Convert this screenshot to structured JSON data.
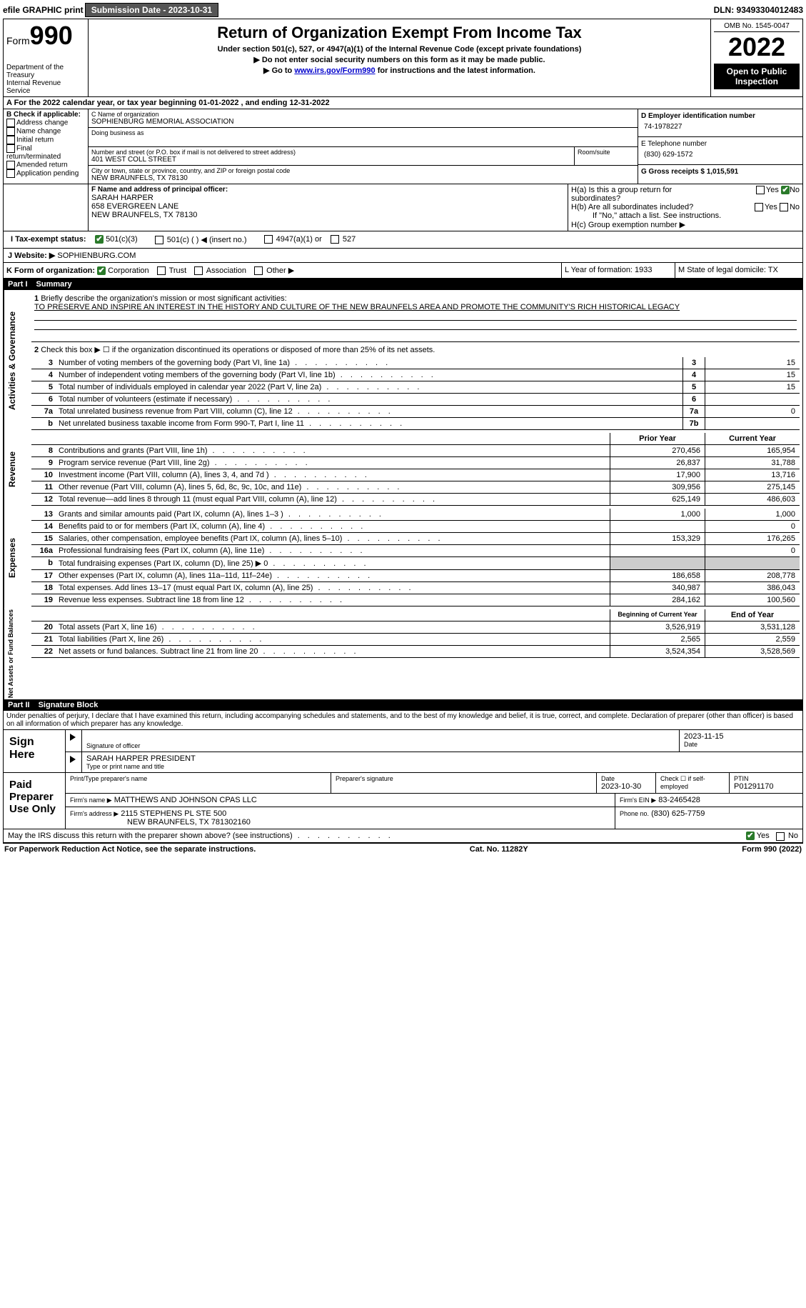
{
  "topbar": {
    "efile": "efile GRAPHIC print",
    "submission_label": "Submission Date - 2023-10-31",
    "dln_label": "DLN: 93493304012483"
  },
  "header": {
    "form_label": "Form",
    "form_number": "990",
    "title": "Return of Organization Exempt From Income Tax",
    "subtitle": "Under section 501(c), 527, or 4947(a)(1) of the Internal Revenue Code (except private foundations)",
    "note1": "▶ Do not enter social security numbers on this form as it may be made public.",
    "note2_pre": "▶ Go to ",
    "note2_link": "www.irs.gov/Form990",
    "note2_post": " for instructions and the latest information.",
    "dept": "Department of the Treasury",
    "irs": "Internal Revenue Service",
    "omb": "OMB No. 1545-0047",
    "year": "2022",
    "open": "Open to Public Inspection"
  },
  "section_a": "A For the 2022 calendar year, or tax year beginning 01-01-2022   , and ending 12-31-2022",
  "section_b": {
    "label_b": "B Check if applicable:",
    "opts": [
      "Address change",
      "Name change",
      "Initial return",
      "Final return/terminated",
      "Amended return",
      "Application pending"
    ],
    "label_c": "C Name of organization",
    "org": "SOPHIENBURG MEMORIAL ASSOCIATION",
    "dba": "Doing business as",
    "street_label": "Number and street (or P.O. box if mail is not delivered to street address)",
    "street": "401 WEST COLL STREET",
    "room_label": "Room/suite",
    "city_label": "City or town, state or province, country, and ZIP or foreign postal code",
    "city": "NEW BRAUNFELS, TX  78130",
    "label_d": "D Employer identification number",
    "ein": "74-1978227",
    "label_e": "E Telephone number",
    "phone": "(830) 629-1572",
    "label_g": "G Gross receipts $ 1,015,591"
  },
  "section_f": {
    "label": "F  Name and address of principal officer:",
    "name": "SARAH HARPER",
    "addr1": "658 EVERGREEN LANE",
    "addr2": "NEW BRAUNFELS, TX  78130",
    "ha": "H(a)  Is this a group return for subordinates?",
    "hb": "H(b)  Are all subordinates included?",
    "hb_note": "If \"No,\" attach a list. See instructions.",
    "hc": "H(c)  Group exemption number ▶",
    "yes": "Yes",
    "no": "No"
  },
  "section_i": {
    "label": "I  Tax-exempt status:",
    "o1": "501(c)(3)",
    "o2": "501(c) (  ) ◀ (insert no.)",
    "o3": "4947(a)(1) or",
    "o4": "527"
  },
  "section_j": {
    "label": "J  Website: ▶",
    "value": " SOPHIENBURG.COM"
  },
  "section_k": {
    "label": "K Form of organization:",
    "o1": "Corporation",
    "o2": "Trust",
    "o3": "Association",
    "o4": "Other ▶",
    "l": "L Year of formation: 1933",
    "m": "M State of legal domicile: TX"
  },
  "part1": {
    "label": "Part I",
    "title": "Summary"
  },
  "summary": {
    "q1": "Briefly describe the organization's mission or most significant activities:",
    "q1v": "TO PRESERVE AND INSPIRE AN INTEREST IN THE HISTORY AND CULTURE OF THE NEW BRAUNFELS AREA AND PROMOTE THE COMMUNITY'S RICH HISTORICAL LEGACY",
    "q2": "Check this box ▶ ☐ if the organization discontinued its operations or disposed of more than 25% of its net assets.",
    "rows_single": [
      {
        "n": "3",
        "d": "Number of voting members of the governing body (Part VI, line 1a)",
        "bn": "3",
        "v": "15"
      },
      {
        "n": "4",
        "d": "Number of independent voting members of the governing body (Part VI, line 1b)",
        "bn": "4",
        "v": "15"
      },
      {
        "n": "5",
        "d": "Total number of individuals employed in calendar year 2022 (Part V, line 2a)",
        "bn": "5",
        "v": "15"
      },
      {
        "n": "6",
        "d": "Total number of volunteers (estimate if necessary)",
        "bn": "6",
        "v": ""
      },
      {
        "n": "7a",
        "d": "Total unrelated business revenue from Part VIII, column (C), line 12",
        "bn": "7a",
        "v": "0"
      },
      {
        "n": "b",
        "d": "Net unrelated business taxable income from Form 990-T, Part I, line 11",
        "bn": "7b",
        "v": ""
      }
    ],
    "col_prior": "Prior Year",
    "col_current": "Current Year",
    "revenue": [
      {
        "n": "8",
        "d": "Contributions and grants (Part VIII, line 1h)",
        "p": "270,456",
        "c": "165,954"
      },
      {
        "n": "9",
        "d": "Program service revenue (Part VIII, line 2g)",
        "p": "26,837",
        "c": "31,788"
      },
      {
        "n": "10",
        "d": "Investment income (Part VIII, column (A), lines 3, 4, and 7d )",
        "p": "17,900",
        "c": "13,716"
      },
      {
        "n": "11",
        "d": "Other revenue (Part VIII, column (A), lines 5, 6d, 8c, 9c, 10c, and 11e)",
        "p": "309,956",
        "c": "275,145"
      },
      {
        "n": "12",
        "d": "Total revenue—add lines 8 through 11 (must equal Part VIII, column (A), line 12)",
        "p": "625,149",
        "c": "486,603"
      }
    ],
    "expenses": [
      {
        "n": "13",
        "d": "Grants and similar amounts paid (Part IX, column (A), lines 1–3 )",
        "p": "1,000",
        "c": "1,000"
      },
      {
        "n": "14",
        "d": "Benefits paid to or for members (Part IX, column (A), line 4)",
        "p": "",
        "c": "0"
      },
      {
        "n": "15",
        "d": "Salaries, other compensation, employee benefits (Part IX, column (A), lines 5–10)",
        "p": "153,329",
        "c": "176,265"
      },
      {
        "n": "16a",
        "d": "Professional fundraising fees (Part IX, column (A), line 11e)",
        "p": "",
        "c": "0"
      },
      {
        "n": "b",
        "d": "Total fundraising expenses (Part IX, column (D), line 25) ▶ 0",
        "p": "shade",
        "c": "shade"
      },
      {
        "n": "17",
        "d": "Other expenses (Part IX, column (A), lines 11a–11d, 11f–24e)",
        "p": "186,658",
        "c": "208,778"
      },
      {
        "n": "18",
        "d": "Total expenses. Add lines 13–17 (must equal Part IX, column (A), line 25)",
        "p": "340,987",
        "c": "386,043"
      },
      {
        "n": "19",
        "d": "Revenue less expenses. Subtract line 18 from line 12",
        "p": "284,162",
        "c": "100,560"
      }
    ],
    "col_boy": "Beginning of Current Year",
    "col_eoy": "End of Year",
    "netassets": [
      {
        "n": "20",
        "d": "Total assets (Part X, line 16)",
        "p": "3,526,919",
        "c": "3,531,128"
      },
      {
        "n": "21",
        "d": "Total liabilities (Part X, line 26)",
        "p": "2,565",
        "c": "2,559"
      },
      {
        "n": "22",
        "d": "Net assets or fund balances. Subtract line 21 from line 20",
        "p": "3,524,354",
        "c": "3,528,569"
      }
    ]
  },
  "part2": {
    "label": "Part II",
    "title": "Signature Block"
  },
  "sig": {
    "penalty": "Under penalties of perjury, I declare that I have examined this return, including accompanying schedules and statements, and to the best of my knowledge and belief, it is true, correct, and complete. Declaration of preparer (other than officer) is based on all information of which preparer has any knowledge.",
    "sign_here": "Sign Here",
    "sig_officer": "Signature of officer",
    "sig_date": "2023-11-15",
    "date": "Date",
    "name_title": "SARAH HARPER  PRESIDENT",
    "type_name": "Type or print name and title",
    "paid": "Paid Preparer Use Only",
    "prep_name_label": "Print/Type preparer's name",
    "prep_sig_label": "Preparer's signature",
    "prep_date_label": "Date",
    "prep_date": "2023-10-30",
    "check_if": "Check ☐ if self-employed",
    "ptin_label": "PTIN",
    "ptin": "P01291170",
    "firm_name_label": "Firm's name    ▶",
    "firm_name": "MATTHEWS AND JOHNSON CPAS LLC",
    "firm_ein_label": "Firm's EIN ▶",
    "firm_ein": "83-2465428",
    "firm_addr_label": "Firm's address ▶",
    "firm_addr1": "2115 STEPHENS PL STE 500",
    "firm_addr2": "NEW BRAUNFELS, TX  781302160",
    "firm_phone_label": "Phone no.",
    "firm_phone": "(830) 625-7759",
    "may_discuss": "May the IRS discuss this return with the preparer shown above? (see instructions)"
  },
  "footer": {
    "left": "For Paperwork Reduction Act Notice, see the separate instructions.",
    "mid": "Cat. No. 11282Y",
    "right": "Form 990 (2022)"
  }
}
